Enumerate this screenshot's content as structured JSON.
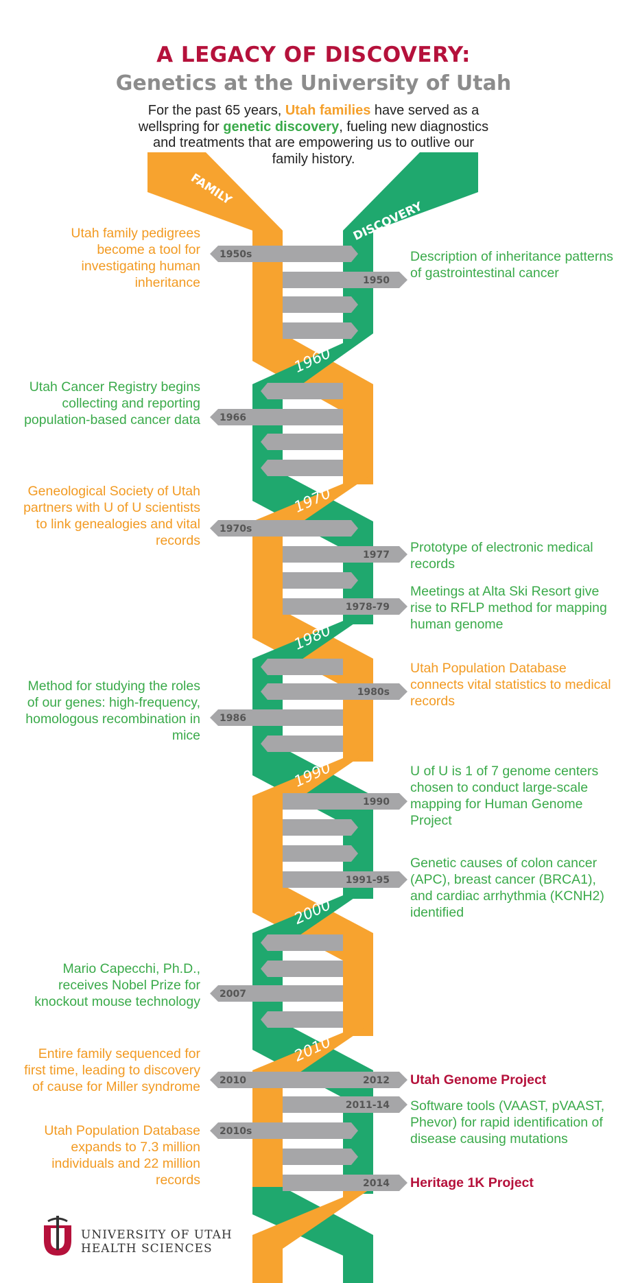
{
  "header": {
    "title": "A LEGACY OF DISCOVERY:",
    "subtitle": "Genetics at the University of Utah"
  },
  "intro": {
    "part1": "For the past 65 years,",
    "families": "Utah families",
    "part2": "have served as a wellspring for",
    "discovery": "genetic discovery",
    "part3": ", fueling new diagnostics and treatments that are empowering us to outlive our family history."
  },
  "strand_labels": {
    "family": "FAMILY",
    "discovery": "DISCOVERY"
  },
  "decades": [
    "1960",
    "1970",
    "1980",
    "1990",
    "2000",
    "2010"
  ],
  "tags": {
    "t1950s": "1950s",
    "t1950": "1950",
    "t1966": "1966",
    "t1970s": "1970s",
    "t1977": "1977",
    "t1978": "1978-79",
    "t1980s": "1980s",
    "t1986": "1986",
    "t1990": "1990",
    "t1991": "1991-95",
    "t2007": "2007",
    "t2010": "2010",
    "t2012": "2012",
    "t2011": "2011-14",
    "t2010s": "2010s",
    "t2014": "2014"
  },
  "events_left": {
    "e1": "Utah family pedigrees become a tool for investigating human inheritance",
    "e2": "Utah Cancer Registry begins collecting and reporting population-based cancer data",
    "e3": "Geneological Society of Utah partners with U of U scientists to link genealogies and vital records",
    "e4": "Method for studying the roles of our genes: high-frequency, homologous recombination in mice",
    "e5": "Mario Capecchi, Ph.D., receives Nobel Prize for knockout mouse technology",
    "e6": "Entire family sequenced for first time, leading to discovery of cause for Miller syndrome",
    "e7": "Utah Population Database expands to 7.3 million individuals and 22 million records"
  },
  "events_right": {
    "e1": "Description of inheritance patterns of gastrointestinal cancer",
    "e2": "Prototype of electronic medical records",
    "e3": "Meetings at Alta Ski Resort give rise to RFLP method for mapping human genome",
    "e4": "Utah Population Database connects vital statistics to medical records",
    "e5": "U of U is 1 of 7 genome centers chosen to conduct large-scale mapping for Human Genome Project",
    "e6": "Genetic causes of colon cancer (APC), breast cancer (BRCA1), and cardiac arrhythmia (KCNH2) identified",
    "e7": "Utah Genome Project",
    "e8": "Software tools (VAAST, pVAAST, Phevor) for rapid identification of disease causing mutations",
    "e9": "Heritage 1K Project"
  },
  "logo": {
    "line1": "UNIVERSITY OF UTAH",
    "line2": "HEALTH SCIENCES"
  },
  "colors": {
    "orange": "#f7a32f",
    "orange_dark": "#e8891f",
    "green": "#1fa86e",
    "green_dark": "#14917f",
    "arrow": "#a6a6a8",
    "crimson": "#b5113b"
  }
}
